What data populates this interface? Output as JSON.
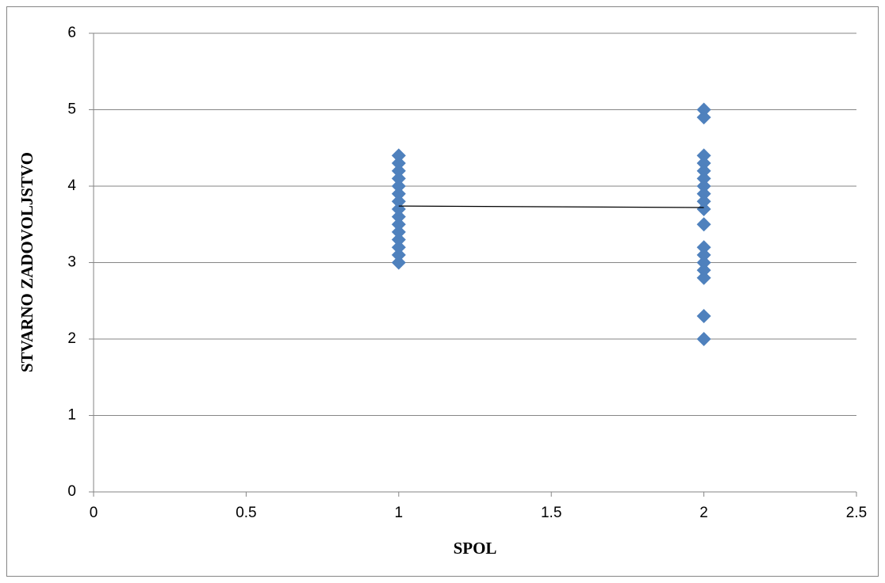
{
  "chart_data": {
    "type": "scatter",
    "xlabel": "SPOL",
    "ylabel": "STVARNO ZADOVOLJSTVO",
    "x": [
      1,
      1,
      1,
      1,
      1,
      1,
      1,
      1,
      1,
      1,
      1,
      1,
      1,
      1,
      1,
      2,
      2,
      2,
      2,
      2,
      2,
      2,
      2,
      2,
      2,
      2,
      2,
      2,
      2,
      2,
      2,
      2,
      2
    ],
    "values": [
      3.0,
      3.1,
      3.2,
      3.3,
      3.4,
      3.5,
      3.6,
      3.7,
      3.8,
      3.9,
      4.0,
      4.1,
      4.2,
      4.3,
      4.4,
      5.0,
      4.9,
      4.4,
      4.3,
      4.2,
      4.1,
      4.0,
      3.9,
      3.8,
      3.7,
      3.5,
      3.2,
      3.1,
      3.0,
      2.9,
      2.8,
      2.3,
      2.0
    ],
    "color": "#4f81bd",
    "trendline": {
      "x": [
        1,
        2
      ],
      "values": [
        3.74,
        3.72
      ],
      "color": "#000000"
    },
    "xlim": [
      0,
      2.5
    ],
    "xticks": [
      0,
      0.5,
      1,
      1.5,
      2,
      2.5
    ],
    "ylim": [
      0,
      6
    ],
    "yticks": [
      0,
      1,
      2,
      3,
      4,
      5,
      6
    ],
    "grid": true
  }
}
